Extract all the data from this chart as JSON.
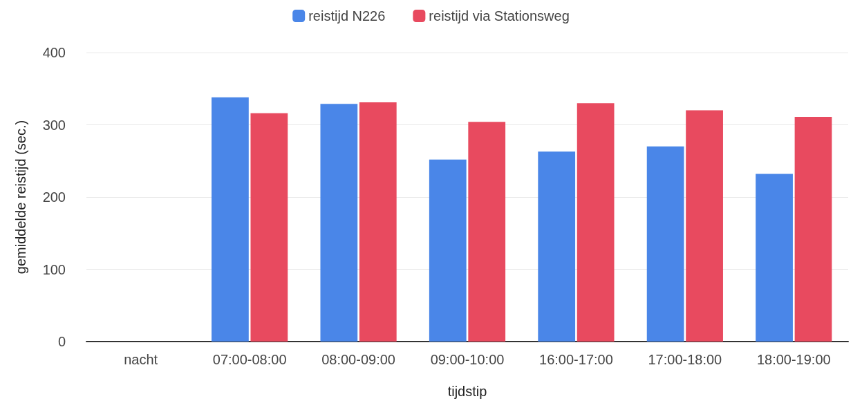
{
  "chart_data": {
    "type": "bar",
    "xlabel": "tijdstip",
    "ylabel": "gemiddelde reistijd (sec.)",
    "categories": [
      "nacht",
      "07:00-08:00",
      "08:00-09:00",
      "09:00-10:00",
      "16:00-17:00",
      "17:00-18:00",
      "18:00-19:00"
    ],
    "series": [
      {
        "name": "reistijd N226",
        "color": "#4a86e8",
        "values": [
          null,
          338,
          329,
          252,
          263,
          270,
          232
        ]
      },
      {
        "name": "reistijd via Stationsweg",
        "color": "#e84a5f",
        "values": [
          null,
          316,
          331,
          304,
          330,
          320,
          311
        ]
      }
    ],
    "ylim": [
      0,
      400
    ],
    "yticks": [
      0,
      100,
      200,
      300,
      400
    ],
    "grid": "y",
    "legend": "top"
  }
}
